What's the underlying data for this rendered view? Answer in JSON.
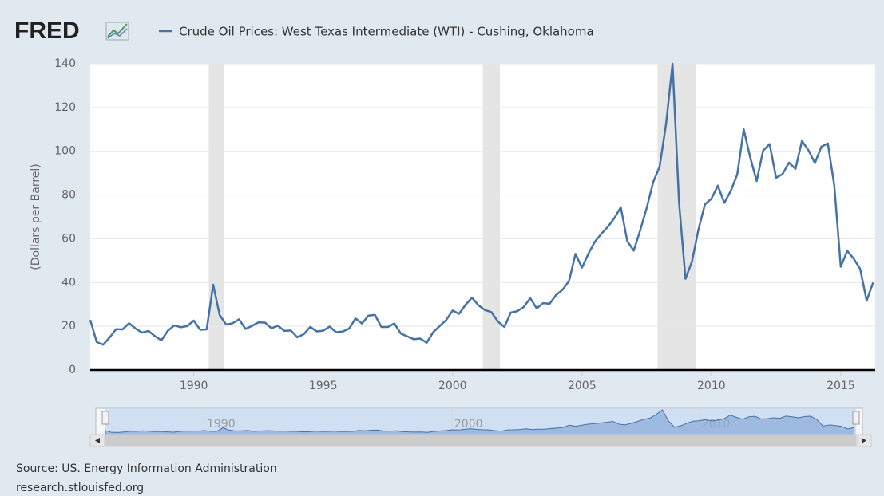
{
  "brand": "FRED",
  "chart_data": {
    "type": "line",
    "series": [
      {
        "name": "Crude Oil Prices: West Texas Intermediate (WTI) - Cushing, Oklahoma",
        "color": "#4572a7",
        "x": [
          1986,
          1986.25,
          1986.5,
          1986.75,
          1987,
          1987.25,
          1987.5,
          1987.75,
          1988,
          1988.25,
          1988.5,
          1988.75,
          1989,
          1989.25,
          1989.5,
          1989.75,
          1990,
          1990.25,
          1990.5,
          1990.75,
          1991,
          1991.25,
          1991.5,
          1991.75,
          1992,
          1992.25,
          1992.5,
          1992.75,
          1993,
          1993.25,
          1993.5,
          1993.75,
          1994,
          1994.25,
          1994.5,
          1994.75,
          1995,
          1995.25,
          1995.5,
          1995.75,
          1996,
          1996.25,
          1996.5,
          1996.75,
          1997,
          1997.25,
          1997.5,
          1997.75,
          1998,
          1998.25,
          1998.5,
          1998.75,
          1999,
          1999.25,
          1999.5,
          1999.75,
          2000,
          2000.25,
          2000.5,
          2000.75,
          2001,
          2001.25,
          2001.5,
          2001.75,
          2002,
          2002.25,
          2002.5,
          2002.75,
          2003,
          2003.25,
          2003.5,
          2003.75,
          2004,
          2004.25,
          2004.5,
          2004.75,
          2005,
          2005.25,
          2005.5,
          2005.75,
          2006,
          2006.25,
          2006.5,
          2006.75,
          2007,
          2007.25,
          2007.5,
          2007.75,
          2008,
          2008.25,
          2008.5,
          2008.75,
          2009,
          2009.25,
          2009.5,
          2009.75,
          2010,
          2010.25,
          2010.5,
          2010.75,
          2011,
          2011.25,
          2011.5,
          2011.75,
          2012,
          2012.25,
          2012.5,
          2012.75,
          2013,
          2013.25,
          2013.5,
          2013.75,
          2014,
          2014.25,
          2014.5,
          2014.75,
          2015,
          2015.25,
          2015.5,
          2015.75,
          2016,
          2016.25
        ],
        "values": [
          22.9,
          12.8,
          11.6,
          14.9,
          18.7,
          18.6,
          21.4,
          19.0,
          17.1,
          17.9,
          15.5,
          13.6,
          18.0,
          20.4,
          19.6,
          20.1,
          22.6,
          18.4,
          18.6,
          39.0,
          25.2,
          20.8,
          21.4,
          23.2,
          18.8,
          20.2,
          21.8,
          21.7,
          19.1,
          20.3,
          17.9,
          18.1,
          15.0,
          16.4,
          19.7,
          17.7,
          18.0,
          19.9,
          17.3,
          17.6,
          18.9,
          23.6,
          21.3,
          24.9,
          25.2,
          19.7,
          19.7,
          21.3,
          16.7,
          15.4,
          14.1,
          14.4,
          12.5,
          17.3,
          20.1,
          22.8,
          27.2,
          25.7,
          29.8,
          33.1,
          29.6,
          27.4,
          26.5,
          22.2,
          19.7,
          26.3,
          26.9,
          28.8,
          32.9,
          28.2,
          30.6,
          30.3,
          34.3,
          36.7,
          40.7,
          53.1,
          46.8,
          53.2,
          58.7,
          62.3,
          65.5,
          69.4,
          74.4,
          58.9,
          54.6,
          63.9,
          74.1,
          85.8,
          93.0,
          112.6,
          140.0,
          76.6,
          41.7,
          49.6,
          64.2,
          75.7,
          78.3,
          84.3,
          76.4,
          81.9,
          89.4,
          110.0,
          97.2,
          86.4,
          100.3,
          103.3,
          87.9,
          89.6,
          94.8,
          92.0,
          104.7,
          100.5,
          94.6,
          102.1,
          103.6,
          84.3,
          47.2,
          54.5,
          50.9,
          46.2,
          31.7,
          40.0
        ]
      }
    ],
    "y_label": "(Dollars per Barrel)",
    "xlim": [
      1986,
      2016.33
    ],
    "xticks": [
      1990,
      1995,
      2000,
      2005,
      2010,
      2015
    ],
    "ylim": [
      0,
      140
    ],
    "yticks": [
      0,
      20,
      40,
      60,
      80,
      100,
      120,
      140
    ],
    "grid": true,
    "recessions": [
      [
        1990.58,
        1991.17
      ],
      [
        2001.17,
        2001.83
      ],
      [
        2007.92,
        2009.42
      ]
    ],
    "navigator": {
      "xticks": [
        1990,
        2000,
        2010
      ]
    }
  },
  "footer": {
    "source": "Source: US. Energy Information Administration",
    "site": "research.stlouisfed.org"
  }
}
